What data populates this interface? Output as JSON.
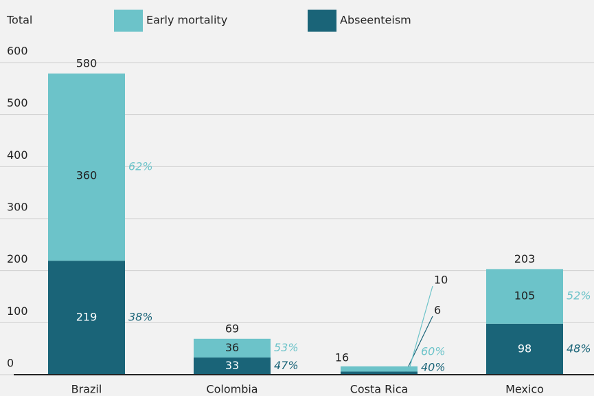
{
  "chart_data": {
    "type": "stacked-bar",
    "ylabel": "Total",
    "categories": [
      "Brazil",
      "Colombia",
      "Costa Rica",
      "Mexico"
    ],
    "series": [
      {
        "name": "Abseenteism",
        "color": "#1a6478",
        "values": [
          219,
          33,
          6,
          98
        ],
        "share_labels": [
          "38%",
          "47%",
          "40%",
          "48%"
        ]
      },
      {
        "name": "Early mortality",
        "color": "#6cc3c9",
        "values": [
          360,
          36,
          10,
          105
        ],
        "share_labels": [
          "62%",
          "53%",
          "60%",
          "52%"
        ]
      }
    ],
    "totals": [
      580,
      69,
      16,
      203
    ],
    "ylim": [
      0,
      600
    ],
    "yticks": [
      0,
      100,
      200,
      300,
      400,
      500,
      600
    ],
    "grid": true
  }
}
